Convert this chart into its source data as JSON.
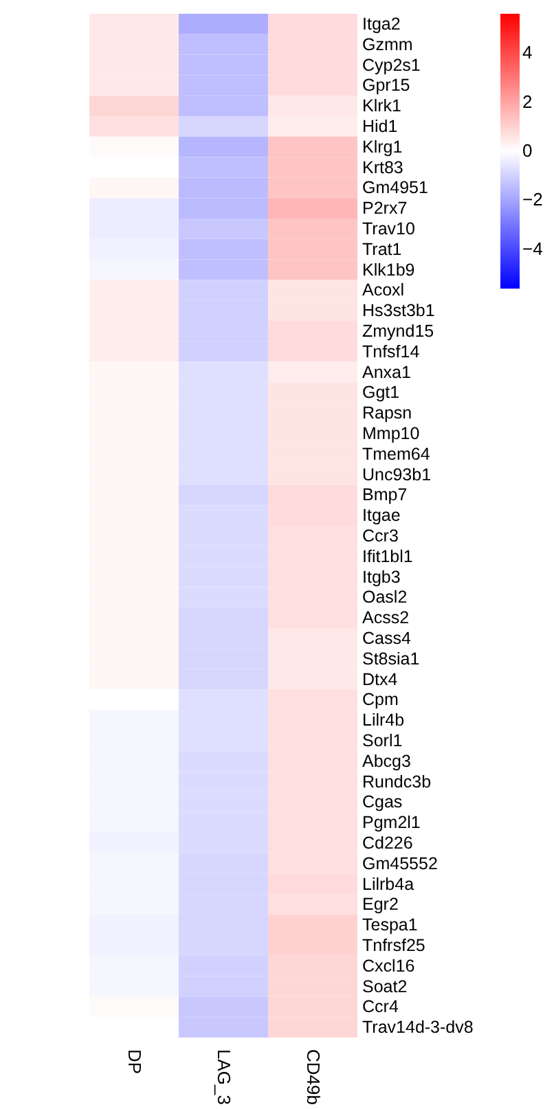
{
  "chart_data": {
    "type": "heatmap",
    "categories": [
      "DP",
      "LAG_3",
      "CD49b"
    ],
    "y_categories": [
      "Itga2",
      "Gzmm",
      "Cyp2s1",
      "Gpr15",
      "Klrk1",
      "Hid1",
      "Klrg1",
      "Krt83",
      "Gm4951",
      "P2rx7",
      "Trav10",
      "Trat1",
      "Klk1b9",
      "Acoxl",
      "Hs3st3b1",
      "Zmynd15",
      "Tnfsf14",
      "Anxa1",
      "Ggt1",
      "Rapsn",
      "Mmp10",
      "Tmem64",
      "Unc93b1",
      "Bmp7",
      "Itgae",
      "Ccr3",
      "Ifit1bl1",
      "Itgb3",
      "Oasl2",
      "Acss2",
      "Cass4",
      "St8sia1",
      "Dtx4",
      "Cpm",
      "Lilr4b",
      "Sorl1",
      "Abcg3",
      "Rundc3b",
      "Cgas",
      "Pgm2l1",
      "Cd226",
      "Gm45552",
      "Lilrb4a",
      "Egr2",
      "Tespa1",
      "Tnfrsf25",
      "Cxcl16",
      "Soat2",
      "Ccr4",
      "Trav14d-3-dv8"
    ],
    "cells": [
      [
        0.5,
        -1.8,
        0.8
      ],
      [
        0.5,
        -1.4,
        0.8
      ],
      [
        0.5,
        -1.4,
        0.8
      ],
      [
        0.5,
        -1.4,
        0.8
      ],
      [
        0.9,
        -1.4,
        0.5
      ],
      [
        0.7,
        -0.9,
        0.4
      ],
      [
        0.1,
        -1.6,
        1.3
      ],
      [
        0.0,
        -1.4,
        1.3
      ],
      [
        0.2,
        -1.5,
        1.3
      ],
      [
        -0.4,
        -1.5,
        1.6
      ],
      [
        -0.4,
        -1.2,
        1.3
      ],
      [
        -0.3,
        -1.4,
        1.3
      ],
      [
        -0.2,
        -1.4,
        1.3
      ],
      [
        0.4,
        -1.0,
        0.6
      ],
      [
        0.4,
        -1.0,
        0.6
      ],
      [
        0.4,
        -1.0,
        0.8
      ],
      [
        0.4,
        -1.0,
        0.8
      ],
      [
        0.2,
        -0.7,
        0.4
      ],
      [
        0.2,
        -0.7,
        0.6
      ],
      [
        0.2,
        -0.7,
        0.6
      ],
      [
        0.2,
        -0.7,
        0.6
      ],
      [
        0.2,
        -0.7,
        0.6
      ],
      [
        0.2,
        -0.7,
        0.6
      ],
      [
        0.2,
        -0.9,
        0.8
      ],
      [
        0.2,
        -0.8,
        0.8
      ],
      [
        0.2,
        -0.8,
        0.7
      ],
      [
        0.2,
        -0.8,
        0.7
      ],
      [
        0.2,
        -0.8,
        0.7
      ],
      [
        0.2,
        -0.8,
        0.7
      ],
      [
        0.2,
        -0.9,
        0.7
      ],
      [
        0.2,
        -0.9,
        0.5
      ],
      [
        0.2,
        -0.9,
        0.5
      ],
      [
        0.2,
        -0.9,
        0.5
      ],
      [
        0.0,
        -0.7,
        0.7
      ],
      [
        -0.2,
        -0.7,
        0.7
      ],
      [
        -0.2,
        -0.7,
        0.7
      ],
      [
        -0.2,
        -0.8,
        0.7
      ],
      [
        -0.2,
        -0.8,
        0.7
      ],
      [
        -0.2,
        -0.8,
        0.7
      ],
      [
        -0.2,
        -0.8,
        0.7
      ],
      [
        -0.3,
        -0.8,
        0.7
      ],
      [
        -0.2,
        -0.9,
        0.7
      ],
      [
        -0.2,
        -0.9,
        0.8
      ],
      [
        -0.2,
        -0.9,
        0.7
      ],
      [
        -0.3,
        -0.9,
        1.0
      ],
      [
        -0.3,
        -0.9,
        1.0
      ],
      [
        -0.2,
        -1.0,
        0.9
      ],
      [
        -0.2,
        -1.0,
        0.9
      ],
      [
        0.1,
        -1.2,
        0.9
      ],
      [
        0.0,
        -1.2,
        0.9
      ]
    ],
    "clim": [
      -5.6,
      5.6
    ],
    "cticks": [
      -4,
      -2,
      0,
      2,
      4
    ],
    "grid": false
  }
}
